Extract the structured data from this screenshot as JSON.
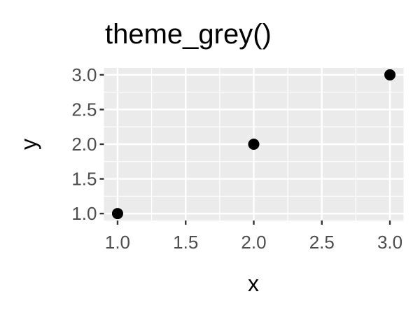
{
  "chart_data": {
    "type": "scatter",
    "title": "theme_grey()",
    "xlabel": "x",
    "ylabel": "y",
    "x": [
      1,
      2,
      3
    ],
    "y": [
      1,
      2,
      3
    ],
    "xlim": [
      0.9,
      3.1
    ],
    "ylim": [
      0.9,
      3.1
    ],
    "xticks": [
      1.0,
      1.5,
      2.0,
      2.5,
      3.0
    ],
    "yticks": [
      1.0,
      1.5,
      2.0,
      2.5,
      3.0
    ],
    "xtick_labels": [
      "1.0",
      "1.5",
      "2.0",
      "2.5",
      "3.0"
    ],
    "ytick_labels": [
      "1.0",
      "1.5",
      "2.0",
      "2.5",
      "3.0"
    ],
    "grid": true,
    "colors": {
      "panel": "#ebebeb",
      "grid": "#ffffff",
      "point": "#000000",
      "tick_text": "#4d4d4d"
    }
  }
}
